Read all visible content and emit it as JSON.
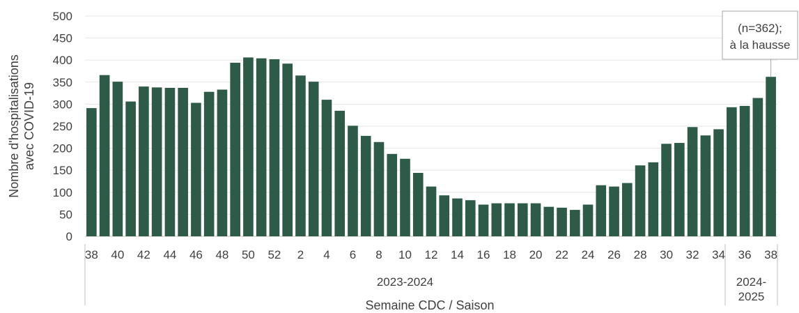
{
  "chart_data": {
    "type": "bar",
    "title": "",
    "ylabel": "Nombre d'hospitalisations avec COVID-19",
    "ylabel_lines": [
      "Nombre d'hospitalisations",
      "avec COVID-19"
    ],
    "xlabel": "Semaine CDC / Saison",
    "ylim": [
      0,
      500
    ],
    "yticks": [
      0,
      50,
      100,
      150,
      200,
      250,
      300,
      350,
      400,
      450,
      500
    ],
    "grid": true,
    "bar_color": "#2e5b47",
    "categories": [
      "38",
      "39",
      "40",
      "41",
      "42",
      "43",
      "44",
      "45",
      "46",
      "47",
      "48",
      "49",
      "50",
      "51",
      "52",
      "1",
      "2",
      "3",
      "4",
      "5",
      "6",
      "7",
      "8",
      "9",
      "10",
      "11",
      "12",
      "13",
      "14",
      "15",
      "16",
      "17",
      "18",
      "19",
      "20",
      "21",
      "22",
      "23",
      "24",
      "25",
      "26",
      "27",
      "28",
      "29",
      "30",
      "31",
      "32",
      "33",
      "34",
      "35",
      "36",
      "37",
      "38"
    ],
    "values": [
      291,
      366,
      351,
      306,
      340,
      338,
      337,
      337,
      303,
      328,
      333,
      394,
      406,
      404,
      402,
      392,
      365,
      351,
      310,
      285,
      251,
      228,
      214,
      187,
      176,
      144,
      113,
      93,
      86,
      82,
      72,
      75,
      75,
      75,
      75,
      67,
      65,
      60,
      72,
      116,
      113,
      121,
      161,
      168,
      210,
      212,
      248,
      229,
      243,
      293,
      296,
      314,
      362
    ],
    "season_groups": [
      {
        "label_lines": [
          "2023-2024"
        ],
        "start": 0,
        "end": 48
      },
      {
        "label_lines": [
          "2024-",
          "2025"
        ],
        "start": 49,
        "end": 52
      }
    ],
    "annotation": {
      "index": 52,
      "lines": [
        "(n=362);",
        "à la hausse"
      ]
    }
  }
}
